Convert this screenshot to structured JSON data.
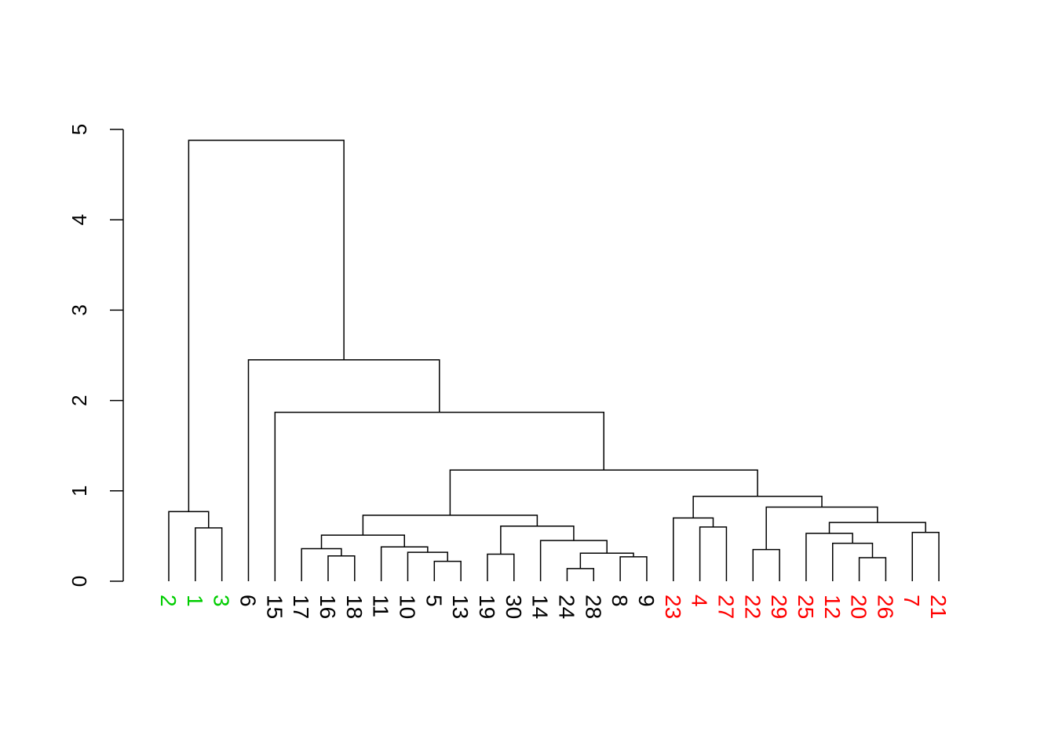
{
  "chart_data": {
    "type": "dendrogram",
    "title": "",
    "xlabel": "",
    "ylabel": "",
    "ylim": [
      0,
      5
    ],
    "y_ticks": [
      "0",
      "1",
      "2",
      "3",
      "4",
      "5"
    ],
    "group_colors": {
      "green": "#00cd00",
      "black": "#000000",
      "red": "#ff0000"
    },
    "leaves": [
      {
        "label": "2",
        "color": "green"
      },
      {
        "label": "1",
        "color": "green"
      },
      {
        "label": "3",
        "color": "green"
      },
      {
        "label": "6",
        "color": "black"
      },
      {
        "label": "15",
        "color": "black"
      },
      {
        "label": "17",
        "color": "black"
      },
      {
        "label": "16",
        "color": "black"
      },
      {
        "label": "18",
        "color": "black"
      },
      {
        "label": "11",
        "color": "black"
      },
      {
        "label": "10",
        "color": "black"
      },
      {
        "label": "5",
        "color": "black"
      },
      {
        "label": "13",
        "color": "black"
      },
      {
        "label": "19",
        "color": "black"
      },
      {
        "label": "30",
        "color": "black"
      },
      {
        "label": "14",
        "color": "black"
      },
      {
        "label": "24",
        "color": "black"
      },
      {
        "label": "28",
        "color": "black"
      },
      {
        "label": "8",
        "color": "black"
      },
      {
        "label": "9",
        "color": "black"
      },
      {
        "label": "23",
        "color": "red"
      },
      {
        "label": "4",
        "color": "red"
      },
      {
        "label": "27",
        "color": "red"
      },
      {
        "label": "22",
        "color": "red"
      },
      {
        "label": "29",
        "color": "red"
      },
      {
        "label": "25",
        "color": "red"
      },
      {
        "label": "12",
        "color": "red"
      },
      {
        "label": "20",
        "color": "red"
      },
      {
        "label": "26",
        "color": "red"
      },
      {
        "label": "7",
        "color": "red"
      },
      {
        "label": "21",
        "color": "red"
      }
    ],
    "merges": [
      {
        "id": "a",
        "children": [
          "1",
          "3"
        ],
        "height": 0.59
      },
      {
        "id": "b",
        "children": [
          "2",
          "a"
        ],
        "height": 0.77
      },
      {
        "id": "c",
        "children": [
          "17",
          "16_18"
        ],
        "height": 0.36
      },
      {
        "id": "16_18",
        "children": [
          "16",
          "18"
        ],
        "height": 0.28
      },
      {
        "id": "d",
        "children": [
          "5",
          "13"
        ],
        "height": 0.22
      },
      {
        "id": "e",
        "children": [
          "10",
          "d"
        ],
        "height": 0.32
      },
      {
        "id": "f",
        "children": [
          "11",
          "e"
        ],
        "height": 0.38
      },
      {
        "id": "g",
        "children": [
          "c",
          "f"
        ],
        "height": 0.51
      },
      {
        "id": "h",
        "children": [
          "19",
          "30"
        ],
        "height": 0.3
      },
      {
        "id": "i",
        "children": [
          "24",
          "28"
        ],
        "height": 0.14
      },
      {
        "id": "j",
        "children": [
          "8",
          "9"
        ],
        "height": 0.27
      },
      {
        "id": "k",
        "children": [
          "i",
          "j"
        ],
        "height": 0.31
      },
      {
        "id": "l",
        "children": [
          "14",
          "k"
        ],
        "height": 0.45
      },
      {
        "id": "m",
        "children": [
          "h",
          "l"
        ],
        "height": 0.61
      },
      {
        "id": "n",
        "children": [
          "g",
          "m"
        ],
        "height": 0.73
      },
      {
        "id": "o",
        "children": [
          "4",
          "27"
        ],
        "height": 0.6
      },
      {
        "id": "p",
        "children": [
          "23",
          "o"
        ],
        "height": 0.7
      },
      {
        "id": "q",
        "children": [
          "22",
          "29"
        ],
        "height": 0.35
      },
      {
        "id": "r",
        "children": [
          "20",
          "26"
        ],
        "height": 0.26
      },
      {
        "id": "s",
        "children": [
          "12",
          "r"
        ],
        "height": 0.42
      },
      {
        "id": "t",
        "children": [
          "25",
          "s"
        ],
        "height": 0.53
      },
      {
        "id": "u",
        "children": [
          "7",
          "21"
        ],
        "height": 0.54
      },
      {
        "id": "v",
        "children": [
          "t",
          "u"
        ],
        "height": 0.65
      },
      {
        "id": "w",
        "children": [
          "q",
          "v"
        ],
        "height": 0.82
      },
      {
        "id": "x",
        "children": [
          "p",
          "w"
        ],
        "height": 0.94
      },
      {
        "id": "y",
        "children": [
          "n",
          "x"
        ],
        "height": 1.23
      },
      {
        "id": "z",
        "children": [
          "15",
          "y"
        ],
        "height": 1.87
      },
      {
        "id": "aa",
        "children": [
          "6",
          "z"
        ],
        "height": 2.45
      },
      {
        "id": "root",
        "children": [
          "b",
          "aa"
        ],
        "height": 4.88
      }
    ]
  }
}
